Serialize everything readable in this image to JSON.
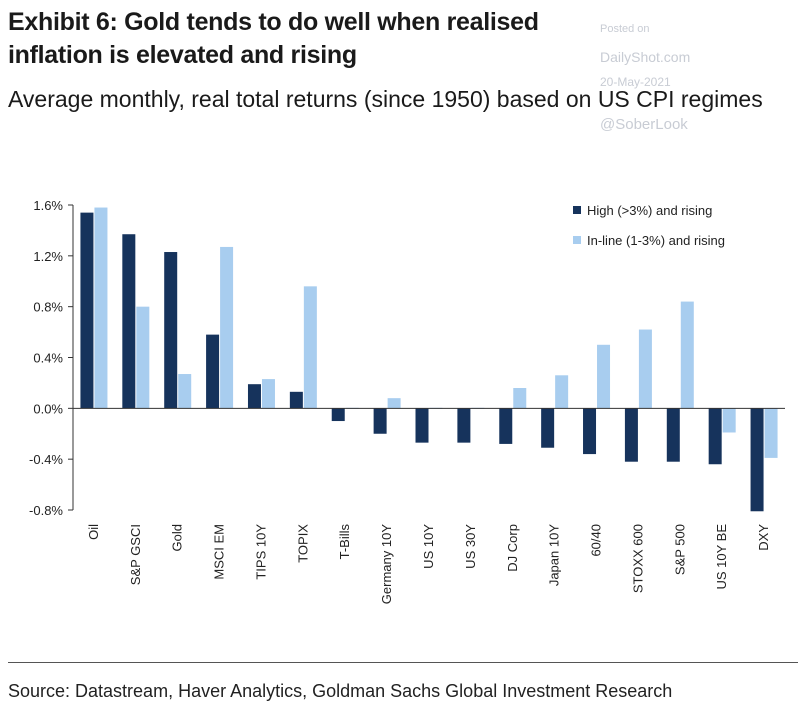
{
  "title": "Exhibit 6: Gold tends to do well when realised inflation is elevated and rising",
  "subtitle": "Average monthly, real total returns (since 1950) based on US CPI regimes",
  "watermark": {
    "top": "Posted on",
    "site": "DailyShot.com",
    "date": "20-May-2021",
    "handle": "@SoberLook"
  },
  "source": "Source: Datastream, Haver Analytics, Goldman Sachs Global Investment Research",
  "chart_data": {
    "type": "bar",
    "categories": [
      "Oil",
      "S&P GSCI",
      "Gold",
      "MSCI EM",
      "TIPS 10Y",
      "TOPIX",
      "T-Bills",
      "Germany 10Y",
      "US 10Y",
      "US 30Y",
      "DJ Corp",
      "Japan 10Y",
      "60/40",
      "STOXX 600",
      "S&P 500",
      "US 10Y BE",
      "DXY"
    ],
    "series": [
      {
        "name": "High (>3%) and rising",
        "color": "#16335c",
        "values": [
          1.54,
          1.37,
          1.23,
          0.58,
          0.19,
          0.13,
          -0.1,
          -0.2,
          -0.27,
          -0.27,
          -0.28,
          -0.31,
          -0.36,
          -0.42,
          -0.42,
          -0.44,
          -0.81
        ]
      },
      {
        "name": "In-line (1-3%) and rising",
        "color": "#a8cdef",
        "values": [
          1.58,
          0.8,
          0.27,
          1.27,
          0.23,
          0.96,
          0.0,
          0.08,
          0.0,
          0.0,
          0.16,
          0.26,
          0.5,
          0.62,
          0.84,
          -0.19,
          -0.39
        ]
      }
    ],
    "ylim": [
      -0.8,
      1.6
    ],
    "yticks": [
      -0.8,
      -0.4,
      0.0,
      0.4,
      0.8,
      1.2,
      1.6
    ],
    "ytick_labels": [
      "-0.8%",
      "-0.4%",
      "0.0%",
      "0.4%",
      "0.8%",
      "1.2%",
      "1.6%"
    ],
    "legend": "top-right",
    "grid": false
  }
}
